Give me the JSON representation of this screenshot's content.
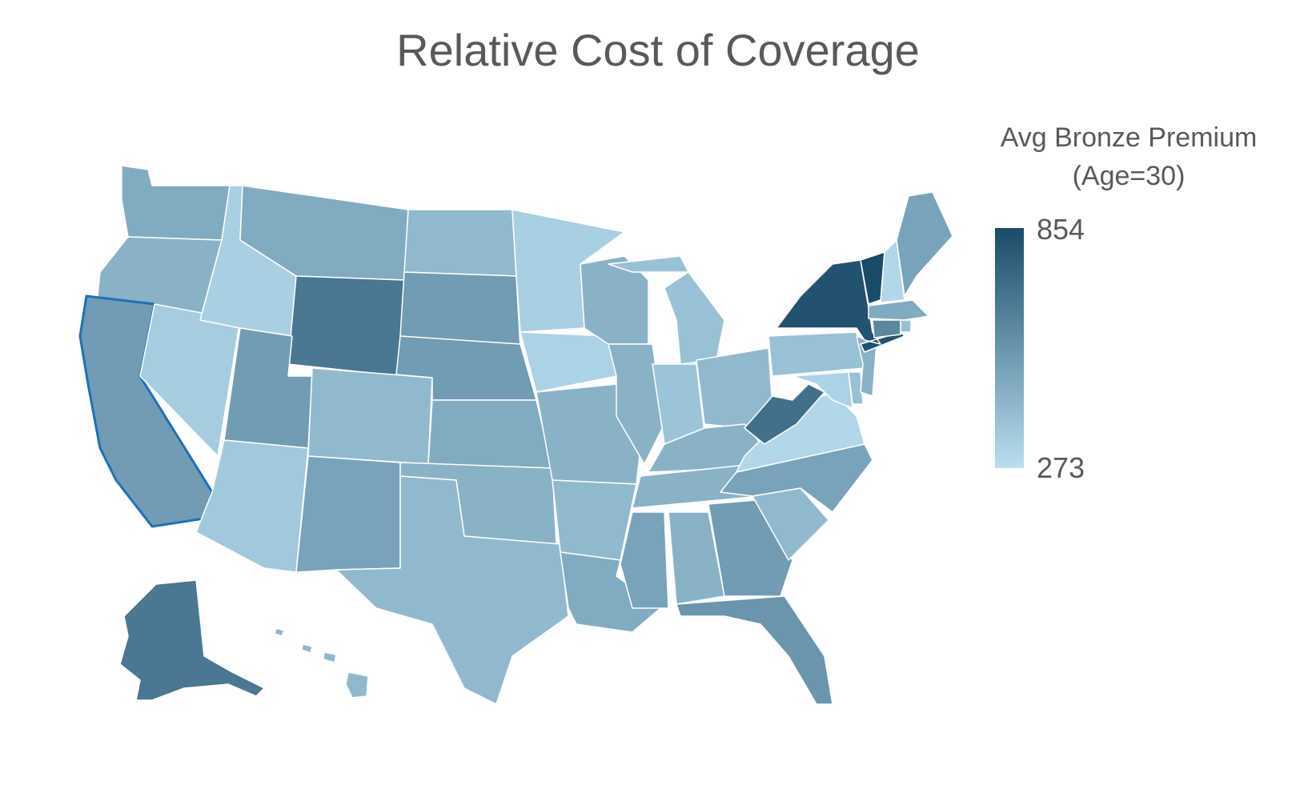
{
  "title": "Relative Cost of Coverage",
  "legend": {
    "title_line1": "Avg Bronze Premium",
    "title_line2": "(Age=30)",
    "max_label": "854",
    "min_label": "273",
    "color_high": "#1a4b68",
    "color_low": "#b9def0"
  },
  "selected_state": "CA",
  "selection_color": "#1f6fb8",
  "states": [
    {
      "id": "WA",
      "level": 0.35
    },
    {
      "id": "OR",
      "level": 0.3
    },
    {
      "id": "CA",
      "level": 0.45
    },
    {
      "id": "ID",
      "level": 0.1
    },
    {
      "id": "NV",
      "level": 0.12
    },
    {
      "id": "MT",
      "level": 0.35
    },
    {
      "id": "WY",
      "level": 0.7
    },
    {
      "id": "UT",
      "level": 0.45
    },
    {
      "id": "AZ",
      "level": 0.15
    },
    {
      "id": "CO",
      "level": 0.25
    },
    {
      "id": "NM",
      "level": 0.4
    },
    {
      "id": "ND",
      "level": 0.25
    },
    {
      "id": "SD",
      "level": 0.45
    },
    {
      "id": "NE",
      "level": 0.45
    },
    {
      "id": "KS",
      "level": 0.35
    },
    {
      "id": "OK",
      "level": 0.3
    },
    {
      "id": "TX",
      "level": 0.25
    },
    {
      "id": "MN",
      "level": 0.1
    },
    {
      "id": "IA",
      "level": 0.08
    },
    {
      "id": "MO",
      "level": 0.3
    },
    {
      "id": "AR",
      "level": 0.25
    },
    {
      "id": "LA",
      "level": 0.35
    },
    {
      "id": "WI",
      "level": 0.3
    },
    {
      "id": "IL",
      "level": 0.3
    },
    {
      "id": "MI",
      "level": 0.2
    },
    {
      "id": "IN",
      "level": 0.18
    },
    {
      "id": "OH",
      "level": 0.25
    },
    {
      "id": "KY",
      "level": 0.3
    },
    {
      "id": "TN",
      "level": 0.3
    },
    {
      "id": "MS",
      "level": 0.4
    },
    {
      "id": "AL",
      "level": 0.3
    },
    {
      "id": "GA",
      "level": 0.45
    },
    {
      "id": "FL",
      "level": 0.5
    },
    {
      "id": "SC",
      "level": 0.25
    },
    {
      "id": "NC",
      "level": 0.4
    },
    {
      "id": "VA",
      "level": 0.05
    },
    {
      "id": "WV",
      "level": 0.75
    },
    {
      "id": "PA",
      "level": 0.2
    },
    {
      "id": "NY",
      "level": 0.95
    },
    {
      "id": "VT",
      "level": 1.0
    },
    {
      "id": "NH",
      "level": 0.05
    },
    {
      "id": "ME",
      "level": 0.4
    },
    {
      "id": "MA",
      "level": 0.35
    },
    {
      "id": "CT",
      "level": 0.6
    },
    {
      "id": "RI",
      "level": 0.2
    },
    {
      "id": "NJ",
      "level": 0.3
    },
    {
      "id": "DE",
      "level": 0.2
    },
    {
      "id": "MD",
      "level": 0.08
    },
    {
      "id": "AK",
      "level": 0.7
    },
    {
      "id": "HI",
      "level": 0.25
    }
  ]
}
